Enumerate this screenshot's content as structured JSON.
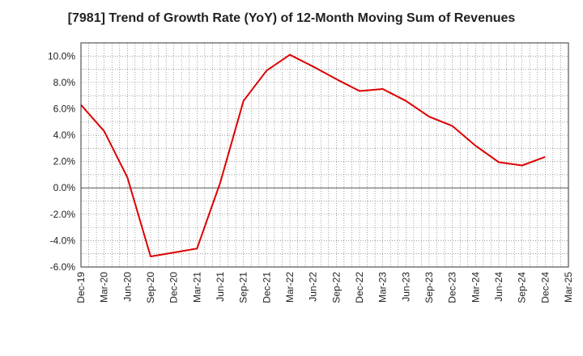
{
  "chart_data": {
    "type": "line",
    "title": "[7981]  Trend of Growth Rate (YoY) of 12-Month Moving Sum of Revenues",
    "xlabel": "",
    "ylabel": "",
    "x_ticks": [
      "Dec-19",
      "Mar-20",
      "Jun-20",
      "Sep-20",
      "Dec-20",
      "Mar-21",
      "Jun-21",
      "Sep-21",
      "Dec-21",
      "Mar-22",
      "Jun-22",
      "Sep-22",
      "Dec-22",
      "Mar-23",
      "Jun-23",
      "Sep-23",
      "Dec-23",
      "Mar-24",
      "Jun-24",
      "Sep-24",
      "Dec-24",
      "Mar-25"
    ],
    "y_ticks": [
      "-6.0%",
      "-4.0%",
      "-2.0%",
      "0.0%",
      "2.0%",
      "4.0%",
      "6.0%",
      "8.0%",
      "10.0%"
    ],
    "ylim": [
      -6,
      11
    ],
    "grid": true,
    "series": [
      {
        "color": "#dd0000",
        "x": [
          "Dec-19",
          "Mar-20",
          "Jun-20",
          "Sep-20",
          "Dec-20",
          "Mar-21",
          "Jun-21",
          "Sep-21",
          "Dec-21",
          "Mar-22",
          "Jun-22",
          "Sep-22",
          "Dec-22",
          "Mar-23",
          "Jun-23",
          "Sep-23",
          "Dec-23",
          "Mar-24",
          "Jun-24",
          "Sep-24",
          "Dec-24"
        ],
        "values": [
          6.3,
          4.3,
          0.8,
          -5.2,
          -4.9,
          -4.6,
          0.4,
          6.6,
          8.9,
          10.1,
          9.2,
          8.25,
          7.35,
          7.5,
          6.6,
          5.4,
          4.7,
          3.2,
          1.95,
          1.7,
          2.35
        ]
      }
    ]
  }
}
